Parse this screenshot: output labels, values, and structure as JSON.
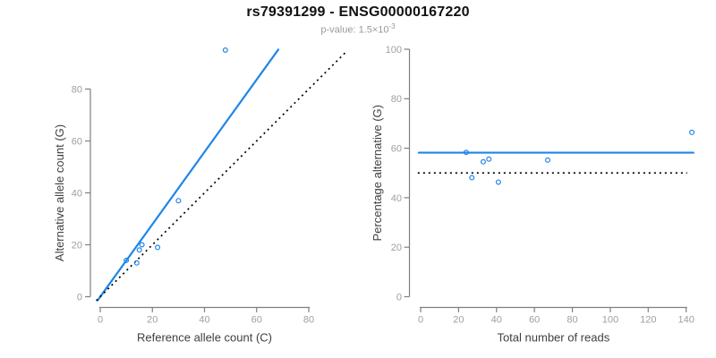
{
  "header": {
    "title": "rs79391299 - ENSG00000167220",
    "subtitle_label": "p-value: ",
    "subtitle_mantissa": "1.5×10",
    "subtitle_exponent": "-3"
  },
  "colors": {
    "accent_blue": "#1e86e8",
    "line_black": "#000000",
    "axis_line": "#808080",
    "tick_label": "#9f9f9f",
    "axis_title": "#404040",
    "title": "#111111",
    "subtitle": "#9a9a9a",
    "background": "#ffffff"
  },
  "chart_data": [
    {
      "type": "scatter",
      "name": "allele-count-scatter",
      "xlabel": "Reference allele count (C)",
      "ylabel": "Alternative allele count (G)",
      "xticks": [
        0,
        20,
        40,
        60,
        80
      ],
      "yticks": [
        0,
        20,
        40,
        60,
        80
      ],
      "xlim": [
        -3.8,
        95.5
      ],
      "ylim": [
        -4.1,
        98.0
      ],
      "grid": false,
      "legend": null,
      "points": [
        [
          10,
          14
        ],
        [
          14,
          13
        ],
        [
          15,
          18
        ],
        [
          16,
          20
        ],
        [
          22,
          19
        ],
        [
          30,
          37
        ],
        [
          48,
          95
        ]
      ],
      "lines": [
        {
          "kind": "regression-line",
          "style": "solid",
          "color_key": "accent_blue",
          "slope": 1.394,
          "intercept": 0,
          "x1": -1.0,
          "y1": -1.4,
          "x2": 68.3,
          "y2": 95.2
        },
        {
          "kind": "identity-line",
          "style": "dotted",
          "color_key": "line_black",
          "slope": 1,
          "intercept": 0,
          "x1": -1.5,
          "y1": -1.5,
          "x2": 94.3,
          "y2": 94.3
        }
      ]
    },
    {
      "type": "scatter",
      "name": "percentage-scatter",
      "xlabel": "Total number of reads",
      "ylabel": "Percentage alternative (G)",
      "xticks": [
        0,
        20,
        40,
        60,
        80,
        100,
        120,
        140
      ],
      "yticks": [
        0,
        20,
        40,
        60,
        80,
        100
      ],
      "xlim": [
        -6.0,
        151.0
      ],
      "ylim": [
        -4.3,
        104.2
      ],
      "grid": false,
      "legend": null,
      "points": [
        [
          24,
          58.3
        ],
        [
          27,
          48.1
        ],
        [
          33,
          54.5
        ],
        [
          36,
          55.6
        ],
        [
          41,
          46.3
        ],
        [
          67,
          55.2
        ],
        [
          143,
          66.4
        ]
      ],
      "lines": [
        {
          "kind": "mean-percentage-line",
          "style": "solid",
          "color_key": "accent_blue",
          "x1": -1.0,
          "y1": 58.2,
          "x2": 143.8,
          "y2": 58.2
        },
        {
          "kind": "reference-50-line",
          "style": "dotted",
          "color_key": "line_black",
          "x1": -1.5,
          "y1": 50,
          "x2": 140.5,
          "y2": 50
        }
      ]
    }
  ]
}
